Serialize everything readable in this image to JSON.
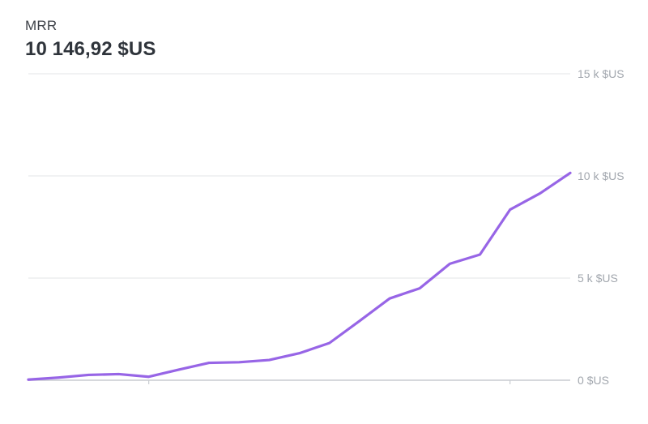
{
  "header": {
    "metric_name": "MRR",
    "metric_value": "10 146,92 $US"
  },
  "colors": {
    "line": "#9765e6",
    "grid": "#e3e4e7",
    "axis": "#c9ccd1",
    "tick_text": "#a2a7ae"
  },
  "chart_data": {
    "type": "line",
    "title": "",
    "xlabel": "",
    "ylabel": "",
    "ylim": [
      0,
      15000
    ],
    "y_ticks": [
      {
        "value": 0,
        "label": "0 $US"
      },
      {
        "value": 5000,
        "label": "5 k $US"
      },
      {
        "value": 10000,
        "label": "10 k $US"
      },
      {
        "value": 15000,
        "label": "15 k $US"
      }
    ],
    "grid": true,
    "legend": "none",
    "series": [
      {
        "values": [
          30,
          130,
          260,
          300,
          170,
          520,
          850,
          880,
          990,
          1320,
          1820,
          2900,
          4000,
          4500,
          5700,
          6150,
          8350,
          9150,
          10146.92
        ]
      }
    ],
    "x_tick_marks_at_index": [
      4,
      16
    ]
  }
}
